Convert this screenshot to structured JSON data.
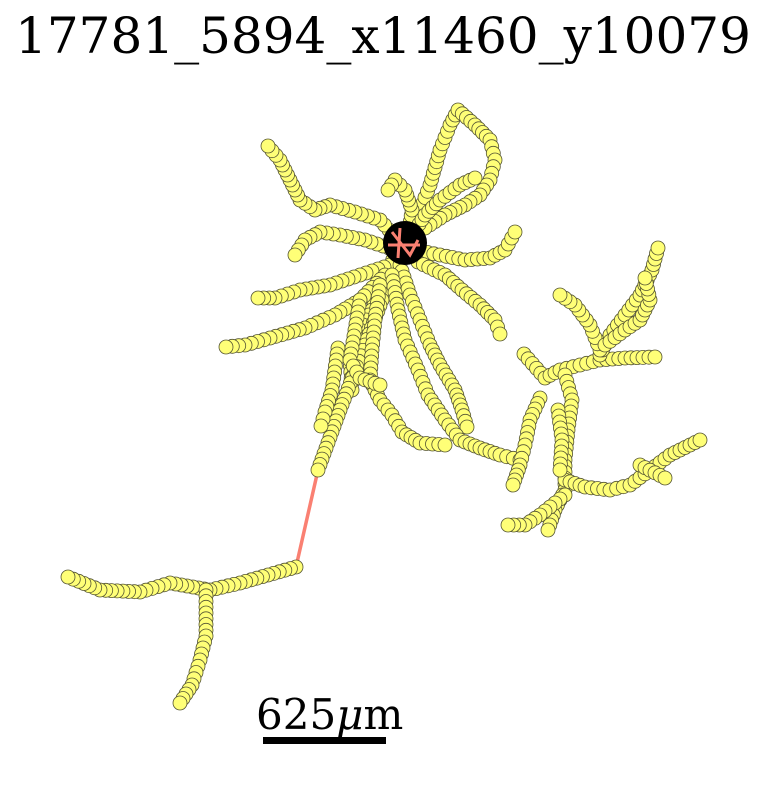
{
  "title": "17781_5894_x11460_y10079",
  "scale_bar": {
    "value": "625",
    "unit_greek": "μ",
    "unit_suffix": "m"
  },
  "colors": {
    "branch": "#fa8072",
    "node_fill": "#ffff77",
    "node_stroke": "#555533",
    "soma": "#000000",
    "background": "#ffffff"
  }
}
